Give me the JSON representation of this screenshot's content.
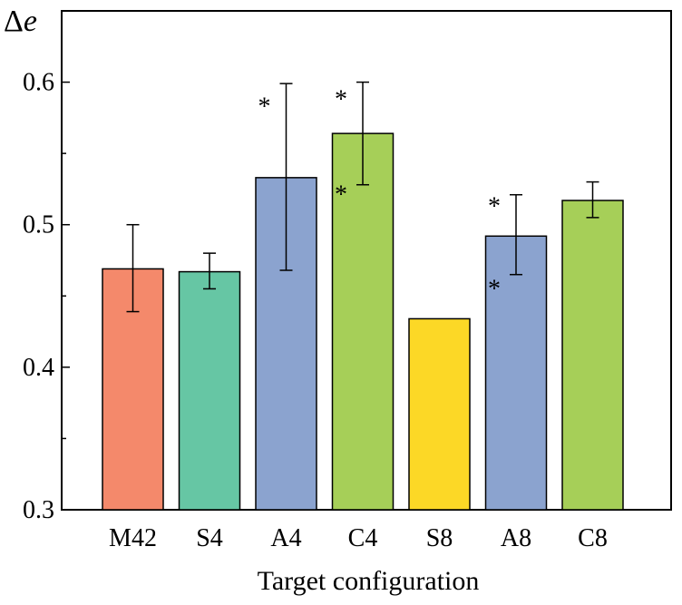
{
  "chart_data": {
    "type": "bar",
    "title": "",
    "ylabel_symbol": "Δ",
    "ylabel_var": "e",
    "xlabel": "Target configuration",
    "ylim": [
      0.3,
      0.65
    ],
    "yticks": [
      0.3,
      0.4,
      0.5,
      0.6
    ],
    "ytick_labels": [
      "0.3",
      "0.4",
      "0.5",
      "0.6"
    ],
    "categories": [
      "M42",
      "S4",
      "A4",
      "C4",
      "S8",
      "A8",
      "C8"
    ],
    "values": [
      0.469,
      0.467,
      0.533,
      0.564,
      0.434,
      0.492,
      0.517
    ],
    "error_lower": [
      0.439,
      0.455,
      0.468,
      0.528,
      null,
      0.465,
      0.505
    ],
    "error_upper": [
      0.5,
      0.48,
      0.599,
      0.6,
      null,
      0.521,
      0.53
    ],
    "colors": [
      "#f4896b",
      "#66c6a4",
      "#8ba3cf",
      "#a6cf58",
      "#fcd826",
      "#8ba3cf",
      "#a6cf58"
    ],
    "annotations": [
      {
        "category": "A4",
        "text": "*",
        "at": 0.59
      },
      {
        "category": "C4",
        "text": "*",
        "at": 0.595
      },
      {
        "category": "C4",
        "text": "*",
        "at": 0.528
      },
      {
        "category": "A8",
        "text": "*",
        "at": 0.52
      },
      {
        "category": "A8",
        "text": "*",
        "at": 0.462
      }
    ]
  }
}
